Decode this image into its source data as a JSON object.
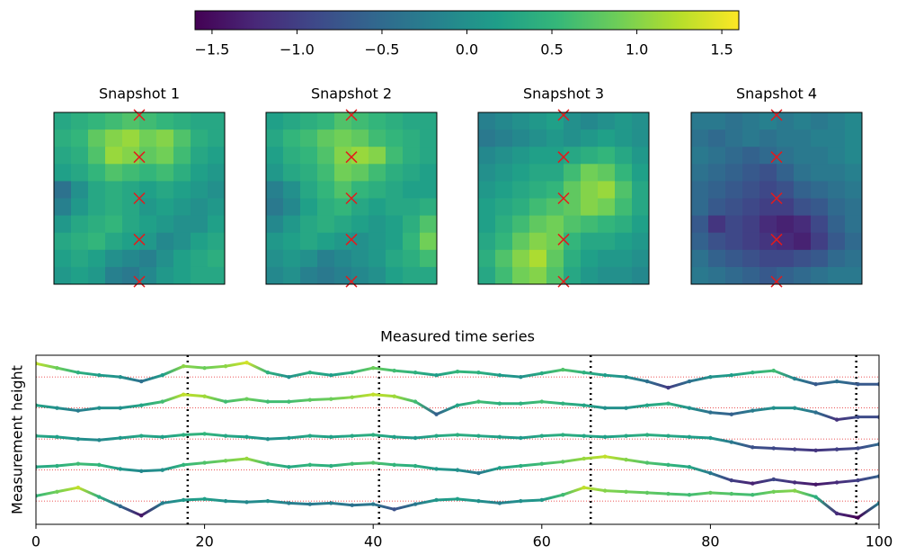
{
  "colorbar": {
    "clim": [
      -1.6,
      1.6
    ],
    "ticks": [
      {
        "value": -1.5,
        "label": "−1.5"
      },
      {
        "value": -1,
        "label": "−1.0"
      },
      {
        "value": -0.5,
        "label": "−0.5"
      },
      {
        "value": 0,
        "label": "0.0"
      },
      0.5,
      {
        "value": 1,
        "label": "1.0"
      },
      1.5
    ]
  },
  "snapshots": [
    {
      "title": "Snapshot 1",
      "values": [
        [
          0.3,
          0.4,
          0.5,
          0.6,
          0.7,
          0.6,
          0.5,
          0.4,
          0.3,
          0.3
        ],
        [
          0.4,
          0.5,
          0.8,
          1.0,
          1.1,
          0.9,
          1.0,
          0.7,
          0.4,
          0.3
        ],
        [
          0.3,
          0.4,
          0.7,
          1.1,
          1.0,
          0.8,
          0.9,
          0.6,
          0.3,
          0.2
        ],
        [
          0.2,
          0.3,
          0.5,
          0.7,
          0.6,
          0.5,
          0.6,
          0.4,
          0.2,
          0.1
        ],
        [
          -0.4,
          0.0,
          0.3,
          0.4,
          0.3,
          0.2,
          0.3,
          0.2,
          0.1,
          0.0
        ],
        [
          -0.2,
          0.1,
          0.3,
          0.4,
          0.3,
          0.1,
          0.2,
          0.1,
          0.0,
          0.1
        ],
        [
          0.1,
          0.3,
          0.4,
          0.5,
          0.3,
          0.2,
          0.1,
          0.0,
          0.0,
          0.2
        ],
        [
          0.3,
          0.4,
          0.5,
          0.3,
          0.2,
          0.1,
          -0.1,
          0.0,
          0.2,
          0.3
        ],
        [
          0.2,
          0.3,
          0.2,
          0.0,
          -0.1,
          -0.2,
          0.0,
          0.2,
          0.3,
          0.4
        ],
        [
          0.1,
          0.2,
          0.1,
          -0.2,
          -0.3,
          -0.1,
          0.1,
          0.2,
          0.3,
          0.3
        ]
      ]
    },
    {
      "title": "Snapshot 2",
      "values": [
        [
          0.2,
          0.3,
          0.4,
          0.5,
          0.7,
          0.6,
          0.5,
          0.4,
          0.3,
          0.3
        ],
        [
          0.3,
          0.5,
          0.6,
          0.8,
          0.9,
          0.8,
          0.6,
          0.5,
          0.4,
          0.3
        ],
        [
          0.2,
          0.4,
          0.5,
          0.7,
          1.0,
          1.1,
          1.0,
          0.6,
          0.4,
          0.3
        ],
        [
          0.1,
          0.3,
          0.4,
          0.6,
          0.9,
          0.8,
          0.6,
          0.4,
          0.3,
          0.2
        ],
        [
          -0.2,
          0.0,
          0.3,
          0.5,
          0.7,
          0.5,
          0.4,
          0.3,
          0.2,
          0.2
        ],
        [
          -0.3,
          -0.1,
          0.2,
          0.4,
          0.5,
          0.3,
          0.2,
          0.3,
          0.3,
          0.4
        ],
        [
          -0.1,
          0.1,
          0.3,
          0.4,
          0.3,
          0.2,
          0.1,
          0.2,
          0.4,
          0.7
        ],
        [
          0.1,
          0.2,
          0.3,
          0.2,
          0.1,
          0.0,
          0.1,
          0.2,
          0.5,
          0.9
        ],
        [
          0.0,
          0.1,
          0.0,
          -0.2,
          -0.1,
          0.0,
          0.1,
          0.3,
          0.4,
          0.6
        ],
        [
          -0.1,
          0.0,
          -0.2,
          -0.3,
          -0.2,
          -0.1,
          0.0,
          0.2,
          0.3,
          0.3
        ]
      ]
    },
    {
      "title": "Snapshot 3",
      "values": [
        [
          -0.2,
          -0.1,
          0.0,
          0.1,
          0.2,
          0.0,
          -0.1,
          0.0,
          0.1,
          0.0
        ],
        [
          -0.3,
          -0.2,
          -0.1,
          0.0,
          0.1,
          0.0,
          0.1,
          0.2,
          0.1,
          0.0
        ],
        [
          -0.1,
          0.0,
          0.1,
          0.2,
          0.2,
          0.3,
          0.4,
          0.5,
          0.3,
          0.1
        ],
        [
          0.0,
          0.1,
          0.2,
          0.3,
          0.3,
          0.6,
          0.9,
          0.8,
          0.5,
          0.2
        ],
        [
          0.1,
          0.2,
          0.3,
          0.4,
          0.5,
          0.8,
          1.0,
          1.1,
          0.7,
          0.3
        ],
        [
          0.2,
          0.3,
          0.4,
          0.6,
          0.7,
          0.8,
          1.0,
          0.9,
          0.6,
          0.3
        ],
        [
          0.2,
          0.4,
          0.6,
          0.8,
          0.9,
          0.7,
          0.6,
          0.5,
          0.4,
          0.2
        ],
        [
          0.3,
          0.5,
          0.8,
          1.0,
          0.9,
          0.5,
          0.3,
          0.3,
          0.2,
          0.1
        ],
        [
          0.4,
          0.7,
          1.0,
          1.2,
          0.8,
          0.4,
          0.2,
          0.1,
          0.1,
          0.0
        ],
        [
          0.3,
          0.6,
          0.9,
          1.0,
          0.7,
          0.3,
          0.1,
          0.0,
          0.0,
          -0.1
        ]
      ]
    },
    {
      "title": "Snapshot 4",
      "values": [
        [
          -0.3,
          -0.3,
          -0.4,
          -0.3,
          -0.2,
          -0.3,
          -0.2,
          -0.3,
          -0.2,
          -0.1
        ],
        [
          -0.4,
          -0.5,
          -0.4,
          -0.3,
          -0.4,
          -0.3,
          -0.3,
          -0.2,
          -0.2,
          -0.1
        ],
        [
          -0.3,
          -0.4,
          -0.5,
          -0.6,
          -0.5,
          -0.4,
          -0.3,
          -0.3,
          -0.2,
          -0.1
        ],
        [
          -0.4,
          -0.5,
          -0.6,
          -0.7,
          -0.8,
          -0.6,
          -0.4,
          -0.3,
          -0.3,
          -0.2
        ],
        [
          -0.5,
          -0.6,
          -0.7,
          -0.8,
          -0.9,
          -0.8,
          -0.6,
          -0.5,
          -0.4,
          -0.3
        ],
        [
          -0.5,
          -0.7,
          -0.8,
          -0.9,
          -1.0,
          -1.0,
          -0.8,
          -0.7,
          -0.5,
          -0.4
        ],
        [
          -0.7,
          -1.1,
          -0.9,
          -1.0,
          -1.2,
          -1.3,
          -1.2,
          -0.9,
          -0.6,
          -0.4
        ],
        [
          -0.6,
          -0.8,
          -0.9,
          -1.0,
          -1.1,
          -1.2,
          -1.3,
          -1.0,
          -0.7,
          -0.5
        ],
        [
          -0.4,
          -0.6,
          -0.7,
          -0.8,
          -0.9,
          -0.9,
          -0.8,
          -0.7,
          -0.5,
          -0.4
        ],
        [
          -0.3,
          -0.4,
          -0.5,
          -0.6,
          -0.7,
          -0.6,
          -0.5,
          -0.4,
          -0.3,
          -0.3
        ]
      ]
    }
  ],
  "sensors": {
    "x": [
      5,
      5,
      5,
      5,
      5
    ],
    "y": [
      0.15,
      2.6,
      5,
      7.4,
      9.85
    ]
  },
  "chart_data": {
    "type": "scatter",
    "title": "Measured time series",
    "y_label": "Measurement height",
    "x": [
      0,
      2.5,
      5,
      7.5,
      10,
      12.5,
      15,
      17.5,
      20,
      22.5,
      25,
      27.5,
      30,
      32.5,
      35,
      37.5,
      40,
      42.5,
      45,
      47.5,
      50,
      52.5,
      55,
      57.5,
      60,
      62.5,
      65,
      67.5,
      70,
      72.5,
      75,
      77.5,
      80,
      82.5,
      85,
      87.5,
      90,
      92.5,
      95,
      97.5,
      100
    ],
    "xlim": [
      0,
      100
    ],
    "xticks": [
      0,
      20,
      40,
      60,
      80,
      100
    ],
    "ylim": [
      -2.25,
      14.1
    ],
    "snapshot_times": [
      18,
      40.7,
      65.8,
      97.3
    ],
    "series": [
      {
        "baseline": 12,
        "values": [
          1.3,
          0.87,
          0.43,
          0.17,
          0,
          -0.43,
          0.17,
          1.04,
          0.87,
          1.04,
          1.39,
          0.43,
          0,
          0.43,
          0.17,
          0.43,
          0.87,
          0.61,
          0.43,
          0.17,
          0.52,
          0.43,
          0.17,
          0,
          0.35,
          0.7,
          0.43,
          0.17,
          0,
          -0.43,
          -1.04,
          -0.43,
          0,
          0.17,
          0.43,
          0.61,
          -0.17,
          -0.7,
          -0.43,
          -0.7,
          -0.7
        ]
      },
      {
        "baseline": 9,
        "values": [
          0.26,
          0,
          -0.26,
          0,
          0,
          0.26,
          0.61,
          1.3,
          1.13,
          0.61,
          0.87,
          0.61,
          0.61,
          0.78,
          0.87,
          1.04,
          1.3,
          1.13,
          0.61,
          -0.61,
          0.26,
          0.61,
          0.43,
          0.43,
          0.61,
          0.43,
          0.26,
          0,
          0,
          0.26,
          0.43,
          0,
          -0.43,
          -0.61,
          -0.26,
          0,
          0,
          -0.43,
          -1.13,
          -0.87,
          -0.87
        ]
      },
      {
        "baseline": 6,
        "values": [
          0.3,
          0.2,
          0.0,
          -0.1,
          0.1,
          0.3,
          0.2,
          0.4,
          0.5,
          0.3,
          0.2,
          0.0,
          0.1,
          0.3,
          0.2,
          0.3,
          0.4,
          0.2,
          0.1,
          0.3,
          0.4,
          0.3,
          0.2,
          0.1,
          0.3,
          0.4,
          0.3,
          0.2,
          0.3,
          0.4,
          0.3,
          0.2,
          0.1,
          -0.3,
          -0.8,
          -0.9,
          -1.0,
          -1.1,
          -1.0,
          -0.9,
          -0.5
        ]
      },
      {
        "baseline": 3,
        "values": [
          0.3,
          0.4,
          0.6,
          0.5,
          0.1,
          -0.1,
          0.0,
          0.5,
          0.7,
          0.9,
          1.1,
          0.6,
          0.3,
          0.5,
          0.4,
          0.6,
          0.7,
          0.5,
          0.4,
          0.1,
          0.0,
          -0.3,
          0.2,
          0.4,
          0.6,
          0.8,
          1.1,
          1.3,
          1.0,
          0.7,
          0.5,
          0.3,
          -0.3,
          -1.0,
          -1.3,
          -0.9,
          -1.2,
          -1.4,
          -1.2,
          -1.0,
          -0.6
        ]
      },
      {
        "baseline": 0,
        "values": [
          0.5,
          0.9,
          1.3,
          0.4,
          -0.5,
          -1.4,
          -0.2,
          0.1,
          0.2,
          0.0,
          -0.1,
          0.0,
          -0.2,
          -0.3,
          -0.2,
          -0.4,
          -0.3,
          -0.8,
          -0.3,
          0.1,
          0.2,
          0.0,
          -0.2,
          0.0,
          0.1,
          0.6,
          1.3,
          1.0,
          0.9,
          0.8,
          0.7,
          0.6,
          0.8,
          0.7,
          0.6,
          0.9,
          1.0,
          0.4,
          -1.2,
          -1.6,
          -0.2
        ]
      }
    ]
  }
}
